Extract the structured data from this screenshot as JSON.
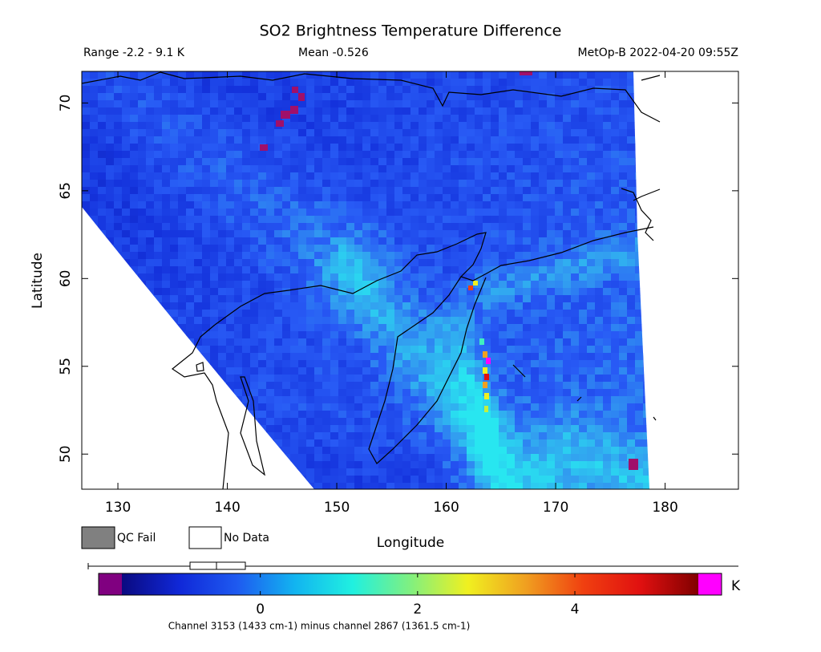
{
  "map": {
    "title": "SO2 Brightness Temperature Difference",
    "range_label": "Range -2.2 - 9.1 K",
    "mean_label": "Mean -0.526",
    "satellite_label": "MetOp-B 2022-04-20 09:55Z",
    "x_label": "Longitude",
    "y_label": "Latitude",
    "xlim": [
      126.7,
      186.7
    ],
    "xticks": [
      130,
      140,
      150,
      160,
      170,
      180
    ],
    "ylim": [
      48.0,
      71.8
    ],
    "yticks": [
      50,
      55,
      60,
      65,
      70
    ],
    "legend": [
      {
        "label": "QC Fail",
        "color": "#808080"
      },
      {
        "label": "No Data",
        "color": "#ffffff"
      }
    ],
    "colorbar": {
      "unit": "K",
      "lim": [
        -1.76,
        5.57
      ],
      "ticks": [
        0,
        2,
        4
      ],
      "colors": [
        "#0a0a80",
        "#1028d8",
        "#1e5af0",
        "#12b4f0",
        "#20f0e0",
        "#80f080",
        "#f0f020",
        "#f0a020",
        "#f04010",
        "#e01010",
        "#800000"
      ],
      "low_color": "#800080",
      "high_color": "#ff00ff"
    },
    "footer": "Channel 3153 (1433 cm-1) minus channel 2867 (1361.5 cm-1)"
  }
}
